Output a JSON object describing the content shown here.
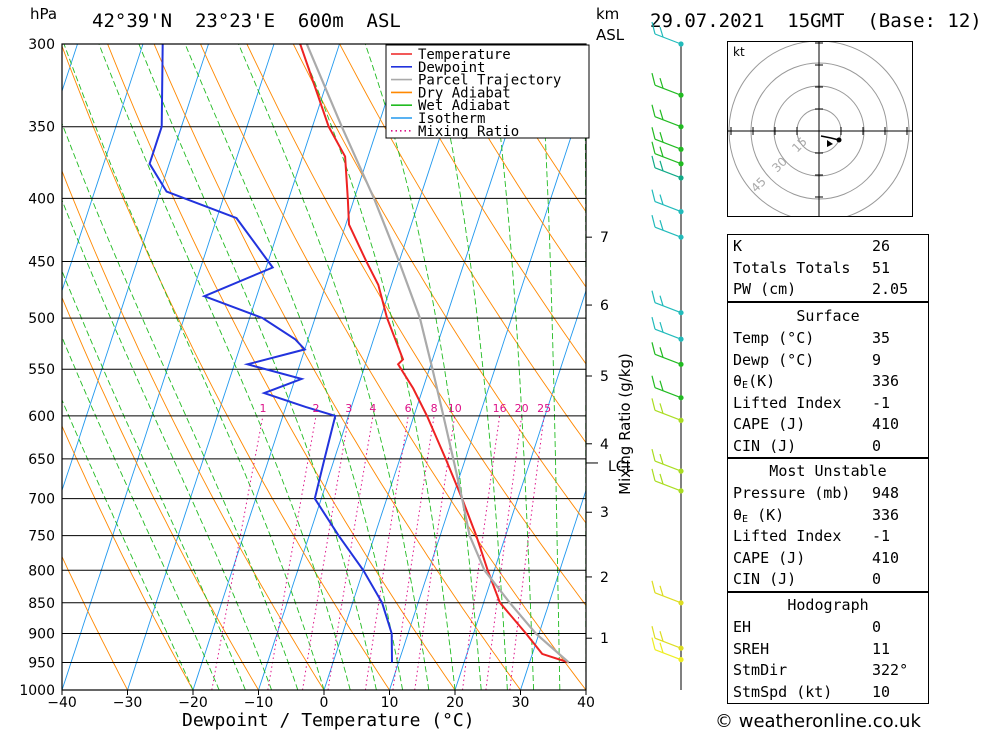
{
  "header": {
    "pressure_unit": "hPa",
    "location": "42°39'N  23°23'E  600m  ASL",
    "height_unit_top": "km",
    "height_unit_bottom": "ASL",
    "datetime": "29.07.2021  15GMT  (Base: 12)"
  },
  "footer": {
    "copyright": "© weatheronline.co.uk"
  },
  "chart_data": {
    "type": "skew-t",
    "title": "42°39'N  23°23'E  600m  ASL",
    "xlabel": "Dewpoint / Temperature (°C)",
    "ylabel": "hPa",
    "xlim": [
      -40,
      40
    ],
    "ylim": [
      1000,
      300
    ],
    "x_ticks": [
      -40,
      -30,
      -20,
      -10,
      0,
      10,
      20,
      30,
      40
    ],
    "pressure_levels": [
      300,
      350,
      400,
      450,
      500,
      550,
      600,
      650,
      700,
      750,
      800,
      850,
      900,
      950,
      1000
    ],
    "height_axis_label": "km ASL",
    "height_ticks": [
      {
        "km": "1",
        "p": 908
      },
      {
        "km": "2",
        "p": 810
      },
      {
        "km": "3",
        "p": 718
      },
      {
        "km": "4",
        "p": 632
      },
      {
        "km": "5",
        "p": 557
      },
      {
        "km": "6",
        "p": 488
      },
      {
        "km": "7",
        "p": 430
      }
    ],
    "lcl_label": "LCL",
    "lcl_pressure": 655,
    "mixing_ratio_label": "Mixing Ratio (g/kg)",
    "mixing_ratio_values": [
      "1",
      "2",
      "3",
      "4",
      "6",
      "8",
      "10",
      "16",
      "20",
      "25"
    ],
    "legend": [
      {
        "name": "Temperature",
        "color": "#ee2222",
        "style": "solid"
      },
      {
        "name": "Dewpoint",
        "color": "#2233dd",
        "style": "solid"
      },
      {
        "name": "Parcel Trajectory",
        "color": "#aaaaaa",
        "style": "solid"
      },
      {
        "name": "Dry Adiabat",
        "color": "#ff8800",
        "style": "solid"
      },
      {
        "name": "Wet Adiabat",
        "color": "#22bb22",
        "style": "solid"
      },
      {
        "name": "Isotherm",
        "color": "#2299ee",
        "style": "solid"
      },
      {
        "name": "Mixing Ratio",
        "color": "#dd1188",
        "style": "dotted"
      }
    ],
    "series": [
      {
        "name": "Temperature",
        "points": [
          {
            "p": 950,
            "t": 36
          },
          {
            "p": 935,
            "t": 31.5
          },
          {
            "p": 900,
            "t": 28
          },
          {
            "p": 850,
            "t": 22.5
          },
          {
            "p": 800,
            "t": 19
          },
          {
            "p": 750,
            "t": 15.5
          },
          {
            "p": 700,
            "t": 11.5
          },
          {
            "p": 650,
            "t": 7
          },
          {
            "p": 600,
            "t": 2
          },
          {
            "p": 570,
            "t": -1.5
          },
          {
            "p": 545,
            "t": -5
          },
          {
            "p": 540,
            "t": -4.5
          },
          {
            "p": 500,
            "t": -9
          },
          {
            "p": 470,
            "t": -12
          },
          {
            "p": 450,
            "t": -15
          },
          {
            "p": 420,
            "t": -19.5
          },
          {
            "p": 400,
            "t": -21
          },
          {
            "p": 370,
            "t": -23.5
          },
          {
            "p": 350,
            "t": -27.5
          },
          {
            "p": 300,
            "t": -36
          }
        ]
      },
      {
        "name": "Dewpoint",
        "points": [
          {
            "p": 950,
            "t": 9
          },
          {
            "p": 900,
            "t": 7.5
          },
          {
            "p": 850,
            "t": 4.5
          },
          {
            "p": 800,
            "t": 0
          },
          {
            "p": 750,
            "t": -5.5
          },
          {
            "p": 700,
            "t": -11
          },
          {
            "p": 650,
            "t": -11.5
          },
          {
            "p": 600,
            "t": -12
          },
          {
            "p": 590,
            "t": -17
          },
          {
            "p": 575,
            "t": -24
          },
          {
            "p": 560,
            "t": -19
          },
          {
            "p": 545,
            "t": -28
          },
          {
            "p": 530,
            "t": -20
          },
          {
            "p": 520,
            "t": -22
          },
          {
            "p": 500,
            "t": -28
          },
          {
            "p": 480,
            "t": -38
          },
          {
            "p": 455,
            "t": -29
          },
          {
            "p": 415,
            "t": -37
          },
          {
            "p": 395,
            "t": -49
          },
          {
            "p": 375,
            "t": -53
          },
          {
            "p": 350,
            "t": -53
          },
          {
            "p": 300,
            "t": -57
          }
        ]
      },
      {
        "name": "Parcel Trajectory",
        "points": [
          {
            "p": 950,
            "t": 36
          },
          {
            "p": 900,
            "t": 29.5
          },
          {
            "p": 850,
            "t": 24
          },
          {
            "p": 800,
            "t": 18.5
          },
          {
            "p": 750,
            "t": 14.5
          },
          {
            "p": 700,
            "t": 11.5
          },
          {
            "p": 655,
            "t": 8.5
          },
          {
            "p": 600,
            "t": 4.5
          },
          {
            "p": 550,
            "t": 0.5
          },
          {
            "p": 500,
            "t": -4
          },
          {
            "p": 450,
            "t": -10
          },
          {
            "p": 400,
            "t": -17
          },
          {
            "p": 350,
            "t": -25.5
          },
          {
            "p": 300,
            "t": -35
          }
        ]
      }
    ],
    "wind_barbs": [
      {
        "p": 300,
        "color": "#22bbbb"
      },
      {
        "p": 330,
        "color": "#22bb22"
      },
      {
        "p": 350,
        "color": "#22bb22"
      },
      {
        "p": 365,
        "color": "#22bb22"
      },
      {
        "p": 375,
        "color": "#22bb22"
      },
      {
        "p": 385,
        "color": "#11aa88"
      },
      {
        "p": 410,
        "color": "#22bbbb"
      },
      {
        "p": 430,
        "color": "#22bbbb"
      },
      {
        "p": 495,
        "color": "#22bbbb"
      },
      {
        "p": 520,
        "color": "#22bbbb"
      },
      {
        "p": 545,
        "color": "#22bb22"
      },
      {
        "p": 580,
        "color": "#22bb22"
      },
      {
        "p": 605,
        "color": "#aadd22"
      },
      {
        "p": 665,
        "color": "#aadd22"
      },
      {
        "p": 690,
        "color": "#aadd22"
      },
      {
        "p": 850,
        "color": "#dddd22"
      },
      {
        "p": 925,
        "color": "#dddd22"
      },
      {
        "p": 945,
        "color": "#eeee22"
      }
    ]
  },
  "hodograph": {
    "unit": "kt",
    "ring_labels": [
      "15",
      "30",
      "45"
    ]
  },
  "indices": {
    "rows": [
      {
        "label": "K",
        "value": "26"
      },
      {
        "label": "Totals Totals",
        "value": "51"
      },
      {
        "label": "PW (cm)",
        "value": "2.05"
      }
    ]
  },
  "surface": {
    "title": "Surface",
    "temp_label": "Temp (°C)",
    "temp": "35",
    "dewp_label": "Dewp (°C)",
    "dewp": "9",
    "theta_e_label": "(K)",
    "theta_e": "336",
    "lifted_index_label": "Lifted Index",
    "lifted_index": "-1",
    "cape_label": "CAPE (J)",
    "cape": "410",
    "cin_label": "CIN (J)",
    "cin": "0"
  },
  "most_unstable": {
    "title": "Most Unstable",
    "pressure_label": "Pressure (mb)",
    "pressure": "948",
    "theta_e_label": " (K)",
    "theta_e": "336",
    "lifted_index_label": "Lifted Index",
    "lifted_index": "-1",
    "cape_label": "CAPE (J)",
    "cape": "410",
    "cin_label": "CIN (J)",
    "cin": "0"
  },
  "hodograph_table": {
    "title": "Hodograph",
    "eh_label": "EH",
    "eh": "0",
    "sreh_label": "SREH",
    "sreh": "11",
    "stmdir_label": "StmDir",
    "stmdir": "322°",
    "stmspd_label": "StmSpd (kt)",
    "stmspd": "10"
  }
}
